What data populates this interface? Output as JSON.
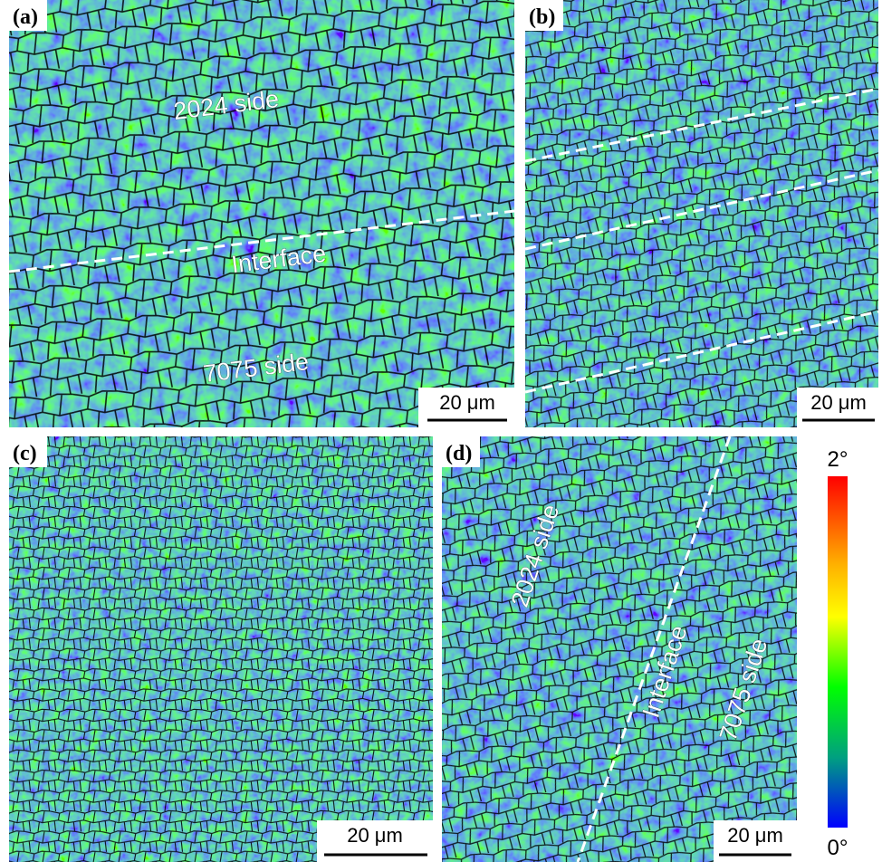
{
  "panels": [
    {
      "label": "(a)",
      "annotations": [
        "2024 side",
        "Interface",
        "7075 side"
      ],
      "scale_bar": "20 μm"
    },
    {
      "label": "(b)",
      "scale_bar": "20 μm"
    },
    {
      "label": "(c)",
      "scale_bar": "20 μm"
    },
    {
      "label": "(d)",
      "annotations": [
        "2024 side",
        "Interface",
        "7075 side"
      ],
      "scale_bar": "20 μm"
    }
  ],
  "colorbar": {
    "max_label": "2°",
    "min_label": "0°"
  }
}
